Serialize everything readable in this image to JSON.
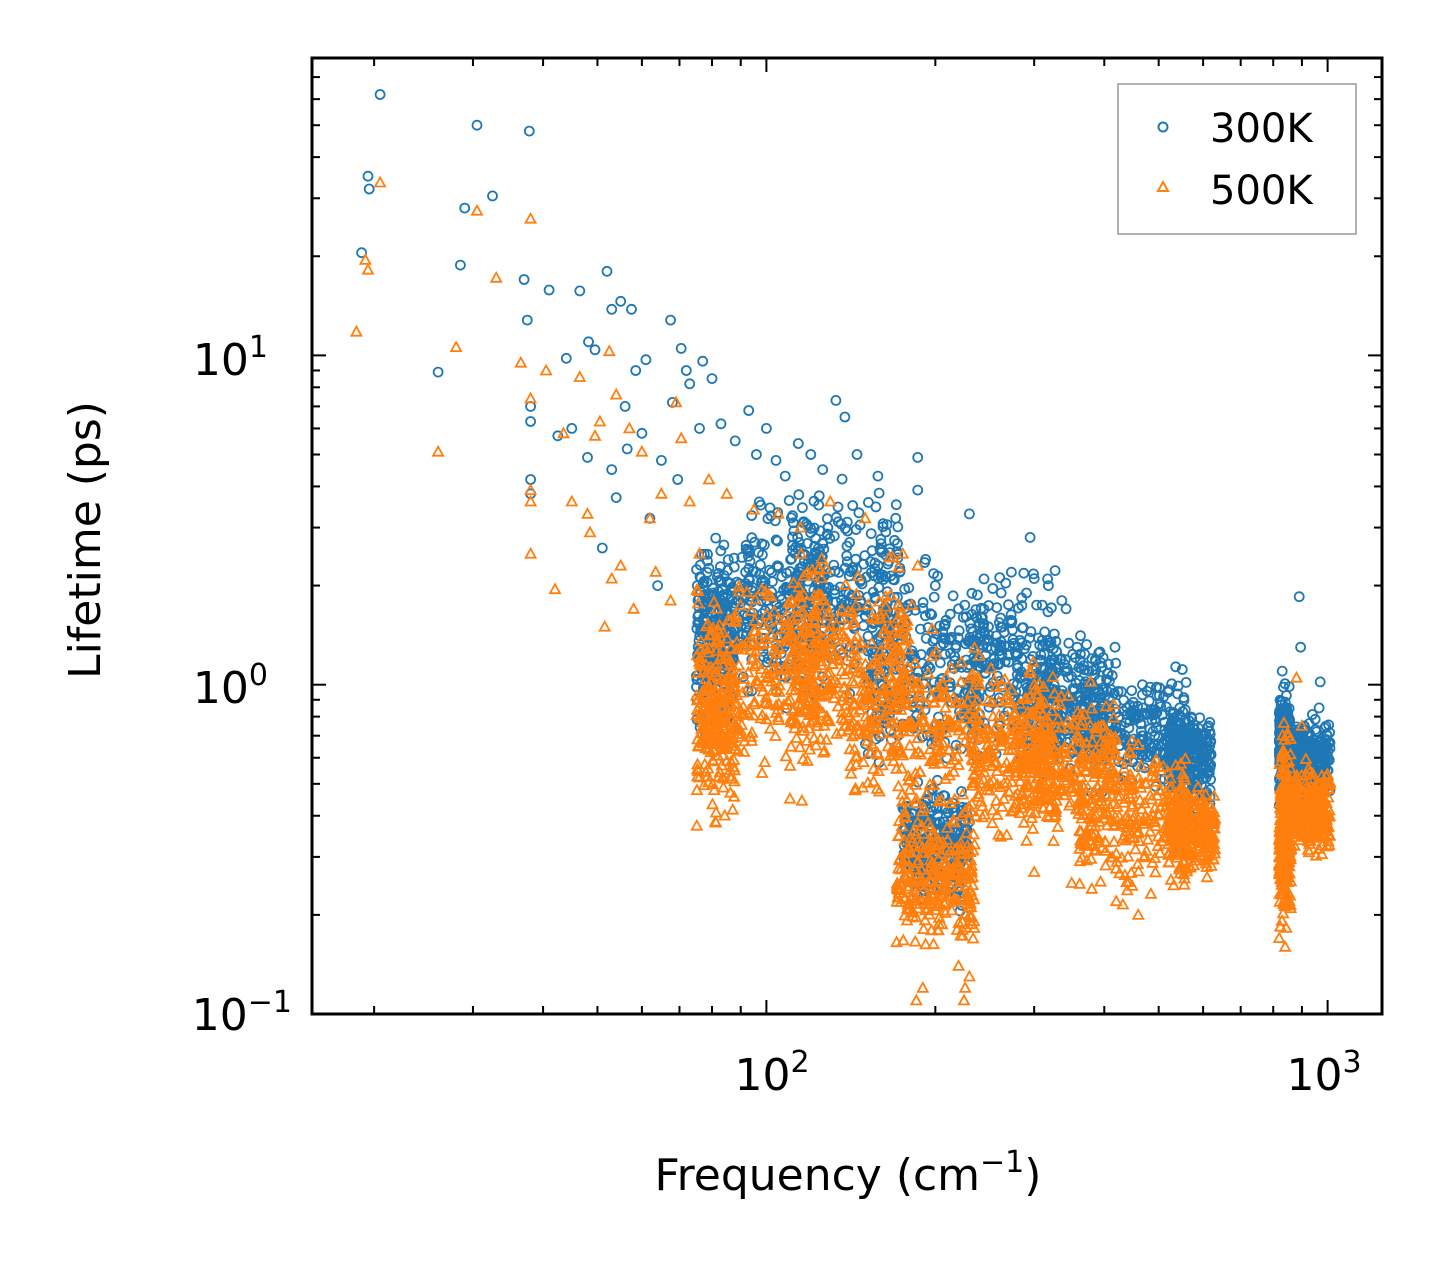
{
  "chart_data": {
    "type": "scatter",
    "title": "",
    "xlabel": "Frequency (cm",
    "xlabel_sup": "−1",
    "xlabel_suffix": ")",
    "ylabel": "Lifetime (ps)",
    "xscale": "log",
    "yscale": "log",
    "xlim": [
      15.5,
      1250
    ],
    "ylim": [
      0.1,
      80
    ],
    "x_ticks": [
      {
        "base": "10",
        "exp": "2"
      },
      {
        "base": "10",
        "exp": "3"
      }
    ],
    "y_ticks": [
      {
        "base": "10",
        "exp": "−1"
      },
      {
        "base": "10",
        "exp": "0"
      },
      {
        "base": "10",
        "exp": "1"
      }
    ],
    "legend_position": "top-right",
    "series": [
      {
        "name": "300K",
        "marker": "circle",
        "color": "#1f77b4",
        "points": [
          [
            19.0,
            20.5
          ],
          [
            19.5,
            35.0
          ],
          [
            19.6,
            32.0
          ],
          [
            20.5,
            62.0
          ],
          [
            26,
            8.9
          ],
          [
            28.5,
            18.8
          ],
          [
            29,
            28.0
          ],
          [
            30.5,
            50.0
          ],
          [
            32.5,
            30.5
          ],
          [
            37,
            17.0
          ],
          [
            37.5,
            12.8
          ],
          [
            37.8,
            48.0
          ],
          [
            38,
            7.0
          ],
          [
            38,
            6.3
          ],
          [
            38,
            4.2
          ],
          [
            38,
            3.8
          ],
          [
            41,
            15.8
          ],
          [
            42.5,
            5.7
          ],
          [
            44,
            9.8
          ],
          [
            45,
            6.0
          ],
          [
            46.5,
            15.7
          ],
          [
            48,
            4.9
          ],
          [
            48.2,
            11.0
          ],
          [
            49.5,
            10.4
          ],
          [
            51,
            2.6
          ],
          [
            52,
            18.0
          ],
          [
            53,
            13.8
          ],
          [
            53,
            4.5
          ],
          [
            54,
            3.7
          ],
          [
            55,
            14.6
          ],
          [
            56,
            7.0
          ],
          [
            56.5,
            5.2
          ],
          [
            57.5,
            13.8
          ],
          [
            58.5,
            9.0
          ],
          [
            60,
            5.8
          ],
          [
            61,
            9.7
          ],
          [
            62,
            3.2
          ],
          [
            64,
            2.0
          ],
          [
            65,
            4.8
          ],
          [
            67.5,
            12.8
          ],
          [
            68,
            7.2
          ],
          [
            69.5,
            4.2
          ],
          [
            70.5,
            10.5
          ],
          [
            72,
            9.0
          ],
          [
            73,
            8.2
          ],
          [
            76,
            6.0
          ],
          [
            77,
            9.6
          ],
          [
            80,
            8.5
          ],
          [
            83,
            6.2
          ],
          [
            88,
            5.5
          ],
          [
            93,
            6.8
          ],
          [
            96,
            5.0
          ],
          [
            100,
            6.0
          ],
          [
            104,
            4.8
          ],
          [
            108,
            4.3
          ],
          [
            114,
            5.4
          ],
          [
            120,
            5.0
          ],
          [
            126,
            4.5
          ],
          [
            133,
            7.3
          ],
          [
            138,
            6.5
          ],
          [
            145,
            5.0
          ],
          [
            158,
            4.3
          ],
          [
            170,
            3.2
          ],
          [
            186,
            4.9
          ],
          [
            186,
            3.9
          ],
          [
            200,
            2.0
          ],
          [
            220,
            1.7
          ],
          [
            230,
            3.3
          ],
          [
            262,
            1.9
          ],
          [
            295,
            2.8
          ],
          [
            300,
            2.1
          ],
          [
            318,
            2.0
          ],
          [
            336,
            1.8
          ],
          [
            342,
            1.7
          ],
          [
            358,
            1.3
          ],
          [
            380,
            1.2
          ],
          [
            418,
            1.3
          ],
          [
            468,
            1.0
          ],
          [
            520,
            0.95
          ],
          [
            545,
            0.85
          ],
          [
            610,
            0.68
          ],
          [
            890,
            1.85
          ],
          [
            895,
            1.3
          ],
          [
            970,
            1.02
          ],
          [
            1000,
            0.55
          ],
          [
            830,
            1.1
          ],
          [
            845,
            0.85
          ],
          [
            955,
            0.72
          ],
          [
            990,
            0.6
          ]
        ],
        "clusters": [
          {
            "x": [
              75,
              88
            ],
            "y": [
              0.6,
              3.3
            ]
          },
          {
            "x": [
              88,
              130
            ],
            "y": [
              0.75,
              4.4
            ]
          },
          {
            "x": [
              110,
              175
            ],
            "y": [
              0.72,
              4.8
            ]
          },
          {
            "x": [
              150,
              240
            ],
            "y": [
              0.45,
              2.7
            ]
          },
          {
            "x": [
              175,
              230
            ],
            "y": [
              0.18,
              0.6
            ]
          },
          {
            "x": [
              230,
              330
            ],
            "y": [
              0.48,
              2.6
            ]
          },
          {
            "x": [
              290,
              410
            ],
            "y": [
              0.45,
              1.7
            ]
          },
          {
            "x": [
              360,
              560
            ],
            "y": [
              0.42,
              1.25
            ]
          },
          {
            "x": [
              520,
              620
            ],
            "y": [
              0.38,
              0.95
            ]
          },
          {
            "x": [
              820,
              860
            ],
            "y": [
              0.35,
              1.1
            ]
          },
          {
            "x": [
              860,
              1010
            ],
            "y": [
              0.38,
              0.9
            ]
          }
        ]
      },
      {
        "name": "500K",
        "marker": "triangle",
        "color": "#ff7f0e",
        "points": [
          [
            18.6,
            11.8
          ],
          [
            19.3,
            19.5
          ],
          [
            19.5,
            18.2
          ],
          [
            20.5,
            33.5
          ],
          [
            26,
            5.1
          ],
          [
            28,
            10.6
          ],
          [
            30.5,
            27.5
          ],
          [
            33,
            17.2
          ],
          [
            36.5,
            9.5
          ],
          [
            38,
            7.4
          ],
          [
            38,
            3.9
          ],
          [
            38,
            3.6
          ],
          [
            38,
            2.5
          ],
          [
            38,
            26.0
          ],
          [
            40.5,
            9.0
          ],
          [
            42,
            1.95
          ],
          [
            43.5,
            5.8
          ],
          [
            45,
            3.6
          ],
          [
            46.5,
            8.6
          ],
          [
            48,
            3.3
          ],
          [
            48.5,
            2.9
          ],
          [
            49.5,
            5.7
          ],
          [
            50.5,
            6.3
          ],
          [
            51.5,
            1.5
          ],
          [
            52.5,
            10.3
          ],
          [
            53,
            2.1
          ],
          [
            54,
            7.6
          ],
          [
            55,
            2.3
          ],
          [
            57,
            6.0
          ],
          [
            58,
            1.7
          ],
          [
            60,
            5.1
          ],
          [
            62,
            3.2
          ],
          [
            63.5,
            2.2
          ],
          [
            65,
            3.8
          ],
          [
            67.5,
            1.8
          ],
          [
            69,
            7.2
          ],
          [
            70.5,
            5.6
          ],
          [
            73,
            3.6
          ],
          [
            76,
            2.5
          ],
          [
            79,
            4.2
          ],
          [
            85,
            3.8
          ],
          [
            95,
            3.4
          ],
          [
            105,
            3.3
          ],
          [
            115,
            3.0
          ],
          [
            130,
            3.6
          ],
          [
            150,
            3.2
          ],
          [
            175,
            2.5
          ],
          [
            186,
            2.3
          ],
          [
            225,
            0.11
          ],
          [
            226,
            0.12
          ],
          [
            230,
            0.13
          ],
          [
            185,
            0.11
          ],
          [
            190,
            0.12
          ],
          [
            220,
            0.14
          ],
          [
            300,
            0.27
          ],
          [
            350,
            0.25
          ],
          [
            380,
            0.24
          ],
          [
            420,
            0.22
          ],
          [
            460,
            0.2
          ],
          [
            880,
            1.05
          ],
          [
            900,
            0.75
          ],
          [
            610,
            0.26
          ],
          [
            840,
            0.16
          ],
          [
            820,
            0.17
          ]
        ],
        "clusters": [
          {
            "x": [
              75,
              88
            ],
            "y": [
              0.32,
              2.2
            ]
          },
          {
            "x": [
              88,
              130
            ],
            "y": [
              0.42,
              2.7
            ]
          },
          {
            "x": [
              110,
              180
            ],
            "y": [
              0.5,
              2.9
            ]
          },
          {
            "x": [
              140,
              240
            ],
            "y": [
              0.3,
              1.8
            ]
          },
          {
            "x": [
              170,
              235
            ],
            "y": [
              0.14,
              0.5
            ]
          },
          {
            "x": [
              230,
              330
            ],
            "y": [
              0.3,
              1.4
            ]
          },
          {
            "x": [
              280,
              420
            ],
            "y": [
              0.28,
              1.1
            ]
          },
          {
            "x": [
              360,
              560
            ],
            "y": [
              0.2,
              0.8
            ]
          },
          {
            "x": [
              520,
              630
            ],
            "y": [
              0.24,
              0.55
            ]
          },
          {
            "x": [
              820,
              860
            ],
            "y": [
              0.15,
              0.85
            ]
          },
          {
            "x": [
              860,
              1010
            ],
            "y": [
              0.28,
              0.62
            ]
          }
        ]
      }
    ]
  }
}
